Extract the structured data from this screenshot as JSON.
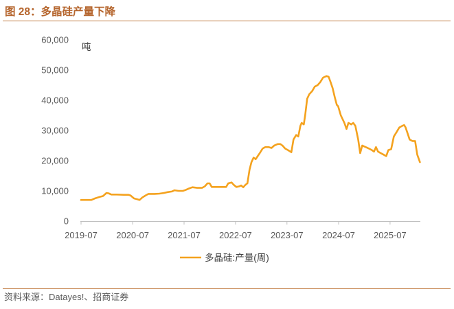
{
  "colors": {
    "title": "#B5652D",
    "rule": "#C07A40"
  },
  "source": "资料来源：Datayes!、招商证券",
  "chart_data": {
    "type": "line",
    "title": "图 28：多晶硅产量下降",
    "ylabel": "吨",
    "ylim": [
      0,
      60000
    ],
    "xlim": [
      "2019-07-01",
      "2026-02-01"
    ],
    "y_ticks": [
      0,
      10000,
      20000,
      30000,
      40000,
      50000,
      60000
    ],
    "y_tick_labels": [
      "0",
      "10,000",
      "20,000",
      "30,000",
      "40,000",
      "50,000",
      "60,000"
    ],
    "x_tick_labels": [
      "2019-07",
      "2020-07",
      "2021-07",
      "2022-07",
      "2023-07",
      "2024-07",
      "2025-07"
    ],
    "grid": false,
    "legend_position": "bottom",
    "x": [
      "2019-07-01",
      "2019-08-09",
      "2019-09-12",
      "2019-10-07",
      "2019-11-10",
      "2019-12-04",
      "2019-12-28",
      "2020-01-12",
      "2020-02-01",
      "2020-03-11",
      "2020-04-28",
      "2020-06-02",
      "2020-06-16",
      "2020-07-11",
      "2020-08-04",
      "2020-08-19",
      "2020-09-07",
      "2020-10-01",
      "2020-10-21",
      "2020-12-04",
      "2021-01-07",
      "2021-02-05",
      "2021-03-06",
      "2021-04-05",
      "2021-04-24",
      "2021-05-24",
      "2021-06-22",
      "2021-07-11",
      "2021-08-05",
      "2021-08-29",
      "2021-10-02",
      "2021-11-05",
      "2021-11-25",
      "2021-12-14",
      "2021-12-29",
      "2022-01-13",
      "2022-02-16",
      "2022-03-22",
      "2022-04-25",
      "2022-05-10",
      "2022-06-03",
      "2022-06-18",
      "2022-07-07",
      "2022-07-27",
      "2022-08-10",
      "2022-08-25",
      "2022-09-09",
      "2022-09-23",
      "2022-10-08",
      "2022-10-22",
      "2022-11-06",
      "2022-11-21",
      "2022-12-05",
      "2022-12-20",
      "2023-01-09",
      "2023-01-28",
      "2023-02-21",
      "2023-03-13",
      "2023-04-01",
      "2023-04-26",
      "2023-05-15",
      "2023-05-30",
      "2023-06-18",
      "2023-07-08",
      "2023-08-01",
      "2023-08-16",
      "2023-09-04",
      "2023-09-19",
      "2023-10-04",
      "2023-10-13",
      "2023-10-28",
      "2023-11-07",
      "2023-11-21",
      "2023-12-06",
      "2023-12-26",
      "2024-01-14",
      "2024-02-03",
      "2024-02-22",
      "2024-03-13",
      "2024-04-06",
      "2024-04-21",
      "2024-05-05",
      "2024-05-20",
      "2024-06-04",
      "2024-06-18",
      "2024-06-28",
      "2024-07-17",
      "2024-08-01",
      "2024-08-11",
      "2024-08-26",
      "2024-09-09",
      "2024-09-29",
      "2024-10-13",
      "2024-10-28",
      "2024-11-17",
      "2024-12-01",
      "2024-12-16",
      "2025-01-09",
      "2025-02-02",
      "2025-02-22",
      "2025-03-09",
      "2025-03-23",
      "2025-04-07",
      "2025-04-26",
      "2025-05-16",
      "2025-06-04",
      "2025-06-19",
      "2025-07-09",
      "2025-07-28",
      "2025-08-17",
      "2025-09-05",
      "2025-09-25",
      "2025-10-09",
      "2025-10-19",
      "2025-11-03",
      "2025-11-17",
      "2025-12-07",
      "2025-12-26",
      "2026-01-10",
      "2026-01-29"
    ],
    "series": [
      {
        "name": "多晶硅:产量(周)",
        "color": "#F4A21E",
        "values": [
          7000,
          7000,
          7000,
          7500,
          8000,
          8300,
          9300,
          9200,
          8800,
          8800,
          8700,
          8700,
          8500,
          7500,
          7200,
          7000,
          7800,
          8500,
          9000,
          9000,
          9100,
          9300,
          9600,
          9800,
          10200,
          10000,
          10000,
          10300,
          10800,
          11200,
          11000,
          11000,
          11500,
          12500,
          12500,
          11300,
          11300,
          11300,
          11300,
          12500,
          12800,
          12000,
          11300,
          11500,
          11800,
          11200,
          12000,
          12500,
          17000,
          19500,
          21000,
          20500,
          21500,
          22500,
          24000,
          24500,
          24500,
          24200,
          25000,
          25500,
          25500,
          25000,
          24000,
          23500,
          22800,
          27000,
          28500,
          28000,
          31500,
          32500,
          32000,
          35000,
          40500,
          42000,
          43000,
          44500,
          45000,
          46000,
          47500,
          48000,
          47800,
          46000,
          44000,
          41000,
          38500,
          38000,
          35000,
          33500,
          32500,
          30500,
          32500,
          32000,
          32500,
          31500,
          27000,
          22500,
          25000,
          24500,
          24000,
          23500,
          23000,
          24500,
          23000,
          22500,
          22000,
          21500,
          23500,
          23800,
          28000,
          29500,
          31000,
          31500,
          31800,
          31000,
          29000,
          27000,
          26500,
          26500,
          22000,
          19500
        ]
      }
    ]
  }
}
